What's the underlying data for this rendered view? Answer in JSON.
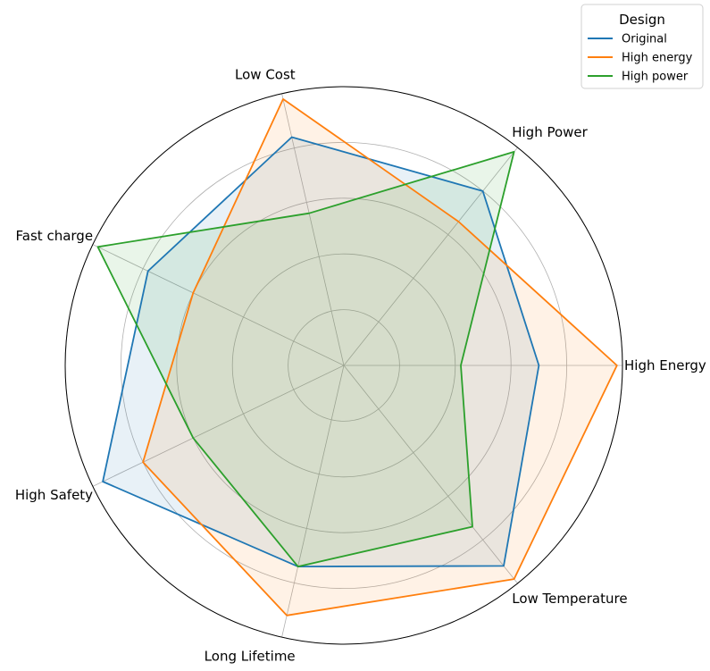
{
  "chart_data": {
    "type": "radar",
    "title": "",
    "axes": [
      "High Energy",
      "High Power",
      "Low Cost",
      "Fast charge",
      "High Safety",
      "Long Lifetime",
      "Low Temperature"
    ],
    "rlim": [
      0,
      5
    ],
    "rticks": [
      1,
      2,
      3,
      4,
      5
    ],
    "grid": true,
    "legend": {
      "title": "Design",
      "placement": "top-right"
    },
    "series": [
      {
        "name": "Original",
        "color": "#1f77b4",
        "values": [
          3.5,
          4.0,
          4.2,
          3.9,
          4.8,
          3.7,
          4.6
        ]
      },
      {
        "name": "High energy",
        "color": "#ff7f0e",
        "values": [
          4.9,
          3.3,
          4.9,
          3.0,
          4.0,
          4.6,
          4.9
        ]
      },
      {
        "name": "High power",
        "color": "#2ca02c",
        "values": [
          2.1,
          4.9,
          2.8,
          4.9,
          3.0,
          3.7,
          3.7
        ]
      }
    ]
  }
}
